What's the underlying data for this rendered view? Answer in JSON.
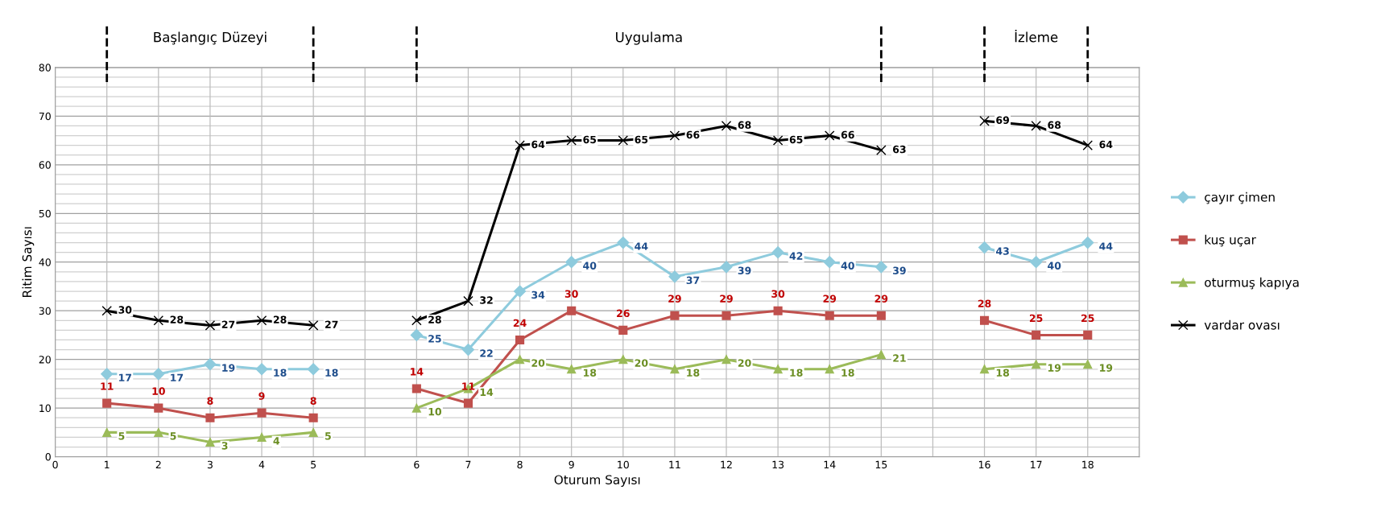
{
  "chart_data": {
    "type": "line",
    "xlabel": "Oturum Sayısı",
    "ylabel": "Ritim Sayısı",
    "categories": [
      "0",
      "1",
      "2",
      "3",
      "4",
      "5",
      null,
      "6",
      "7",
      "8",
      "9",
      "10",
      "11",
      "12",
      "13",
      "14",
      "15",
      null,
      "16",
      "17",
      "18",
      null
    ],
    "series": [
      {
        "name": "çayır çimen",
        "color": "#8ecbdd",
        "marker": "diamond",
        "values": [
          null,
          17,
          17,
          19,
          18,
          18,
          null,
          25,
          22,
          34,
          40,
          44,
          37,
          39,
          42,
          40,
          39,
          null,
          43,
          40,
          44,
          null
        ]
      },
      {
        "name": "kuş uçar",
        "color": "#c0504d",
        "marker": "square",
        "values": [
          null,
          11,
          10,
          8,
          9,
          8,
          null,
          14,
          11,
          24,
          30,
          26,
          29,
          29,
          30,
          29,
          29,
          null,
          28,
          25,
          25,
          null
        ]
      },
      {
        "name": "oturmuş kapıya",
        "color": "#9bbb59",
        "marker": "triangle",
        "values": [
          null,
          5,
          5,
          3,
          4,
          5,
          null,
          10,
          14,
          20,
          18,
          20,
          18,
          20,
          18,
          18,
          21,
          null,
          18,
          19,
          19,
          null
        ]
      },
      {
        "name": "vardar ovası",
        "color": "#000000",
        "marker": "cross",
        "values": [
          null,
          30,
          28,
          27,
          28,
          27,
          null,
          28,
          32,
          64,
          65,
          65,
          66,
          68,
          65,
          66,
          63,
          null,
          69,
          68,
          64,
          null
        ]
      }
    ],
    "ylim": [
      0,
      80
    ],
    "yticks": [
      0,
      10,
      20,
      30,
      40,
      50,
      60,
      70,
      80
    ],
    "grid": true,
    "legend": "right",
    "data_labels": true,
    "line_style": "solid",
    "annotations": [
      "Başlangıç Düzeyi",
      "Uygulama",
      "İzleme"
    ]
  }
}
